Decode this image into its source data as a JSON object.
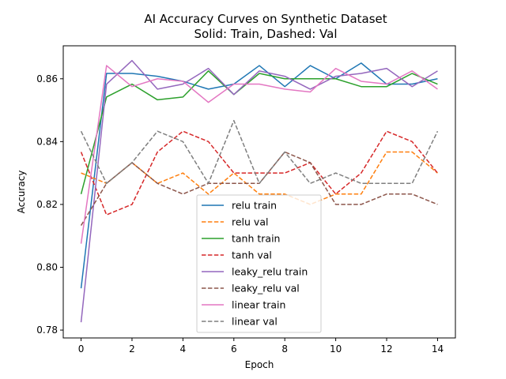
{
  "chart_data": {
    "type": "line",
    "title": "AI Accuracy Curves on Synthetic Dataset",
    "subtitle": "Solid: Train, Dashed: Val",
    "xlabel": "Epoch",
    "ylabel": "Accuracy",
    "xlim": [
      -0.7,
      14.7
    ],
    "ylim": [
      0.7775,
      0.8705
    ],
    "xticks": [
      0,
      2,
      4,
      6,
      8,
      10,
      12,
      14
    ],
    "yticks": [
      0.78,
      0.8,
      0.82,
      0.84,
      0.86
    ],
    "ytick_labels": [
      "0.78",
      "0.80",
      "0.82",
      "0.84",
      "0.86"
    ],
    "grid": false,
    "legend_position": "lower-center",
    "x": [
      0,
      1,
      2,
      3,
      4,
      5,
      6,
      7,
      8,
      9,
      10,
      11,
      12,
      13,
      14
    ],
    "series": [
      {
        "name": "relu train",
        "color": "#1f77b4",
        "style": "solid",
        "values": [
          0.7933,
          0.8617,
          0.8617,
          0.8608,
          0.8592,
          0.8567,
          0.8583,
          0.8642,
          0.8575,
          0.8642,
          0.86,
          0.865,
          0.8583,
          0.8583,
          0.86
        ]
      },
      {
        "name": "relu val",
        "color": "#ff7f0e",
        "style": "dashed",
        "values": [
          0.83,
          0.8267,
          0.8333,
          0.8267,
          0.83,
          0.8233,
          0.83,
          0.8233,
          0.8233,
          0.82,
          0.8233,
          0.8233,
          0.8367,
          0.8367,
          0.83
        ]
      },
      {
        "name": "tanh train",
        "color": "#2ca02c",
        "style": "solid",
        "values": [
          0.8233,
          0.8542,
          0.8583,
          0.8533,
          0.8542,
          0.8625,
          0.855,
          0.8617,
          0.86,
          0.86,
          0.86,
          0.8575,
          0.8575,
          0.8617,
          0.8583
        ]
      },
      {
        "name": "tanh val",
        "color": "#d62728",
        "style": "dashed",
        "values": [
          0.8367,
          0.8167,
          0.82,
          0.8367,
          0.8433,
          0.84,
          0.83,
          0.83,
          0.83,
          0.8333,
          0.8233,
          0.83,
          0.8433,
          0.84,
          0.83
        ]
      },
      {
        "name": "leaky_relu train",
        "color": "#9467bd",
        "style": "solid",
        "values": [
          0.7825,
          0.8583,
          0.8658,
          0.8567,
          0.8583,
          0.8633,
          0.855,
          0.8625,
          0.8608,
          0.8567,
          0.8608,
          0.8617,
          0.8633,
          0.8575,
          0.8625
        ]
      },
      {
        "name": "leaky_relu val",
        "color": "#8c564b",
        "style": "dashed",
        "values": [
          0.8133,
          0.8267,
          0.8333,
          0.8267,
          0.8233,
          0.8267,
          0.8267,
          0.8267,
          0.8367,
          0.8333,
          0.82,
          0.82,
          0.8233,
          0.8233,
          0.82
        ]
      },
      {
        "name": "linear train",
        "color": "#e377c2",
        "style": "solid",
        "values": [
          0.8075,
          0.8642,
          0.8575,
          0.86,
          0.8592,
          0.8525,
          0.8583,
          0.8583,
          0.8567,
          0.8558,
          0.8633,
          0.8592,
          0.8583,
          0.8625,
          0.8567
        ]
      },
      {
        "name": "linear val",
        "color": "#7f7f7f",
        "style": "dashed",
        "values": [
          0.8433,
          0.8267,
          0.8333,
          0.8433,
          0.84,
          0.8267,
          0.8467,
          0.8267,
          0.8367,
          0.8267,
          0.83,
          0.8267,
          0.8267,
          0.8267,
          0.8433
        ]
      }
    ]
  }
}
